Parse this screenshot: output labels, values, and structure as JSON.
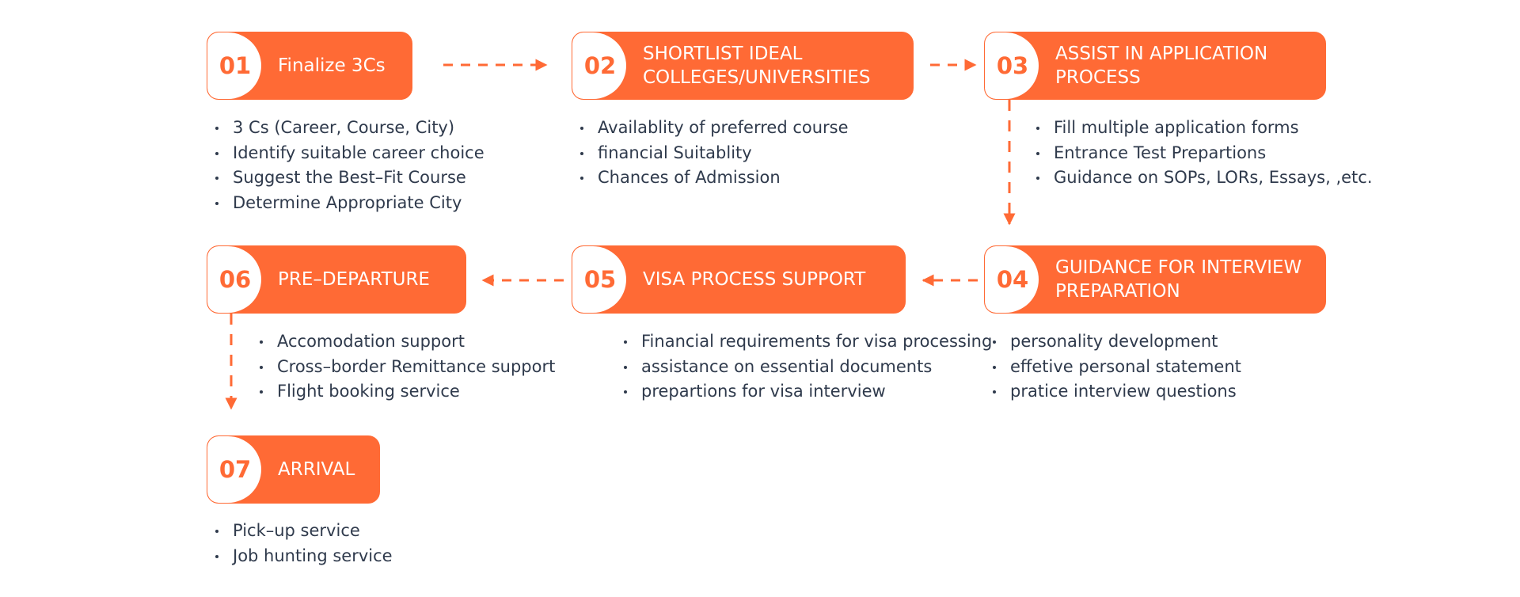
{
  "steps": [
    {
      "number": "01",
      "title": "Finalize 3Cs",
      "bullets": [
        "3 Cs (Career, Course, City)",
        "Identify suitable career choice",
        "Suggest the Best–Fit Course",
        "Determine Appropriate City"
      ]
    },
    {
      "number": "02",
      "title": "SHORTLIST IDEAL COLLEGES/UNIVERSITIES",
      "bullets": [
        "Availablity of preferred course",
        "financial Suitablity",
        "Chances of Admission"
      ]
    },
    {
      "number": "03",
      "title": "ASSIST IN APPLICATION PROCESS",
      "bullets": [
        "Fill multiple application forms",
        "Entrance Test Prepartions",
        "Guidance on SOPs, LORs, Essays, ,etc."
      ]
    },
    {
      "number": "04",
      "title": "GUIDANCE FOR INTERVIEW PREPARATION",
      "bullets": [
        "personality development",
        "effetive personal statement",
        "pratice interview questions"
      ]
    },
    {
      "number": "05",
      "title": "VISA PROCESS SUPPORT",
      "bullets": [
        "Financial requirements for visa processing",
        "assistance on essential documents",
        "prepartions for visa interview"
      ]
    },
    {
      "number": "06",
      "title": "PRE–DEPARTURE",
      "bullets": [
        "Accomodation support",
        "Cross–border Remittance support",
        "Flight booking service"
      ]
    },
    {
      "number": "07",
      "title": "ARRIVAL",
      "bullets": [
        "Pick–up service",
        "Job hunting service"
      ]
    }
  ],
  "colors": {
    "accent": "#ff6a35",
    "text": "#2f3a4c"
  }
}
